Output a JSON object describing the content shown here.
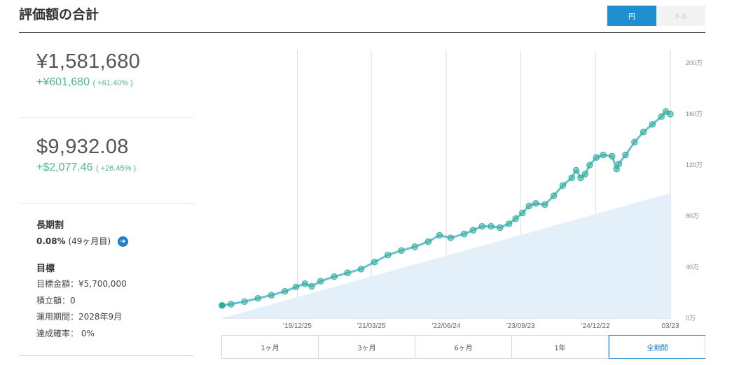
{
  "page": {
    "title": "評価額の合計"
  },
  "currency_toggle": {
    "yen": "円",
    "dollar": "ドル",
    "selected": "円"
  },
  "yen_total": {
    "value": "¥1,581,680",
    "gain": "+¥601,680",
    "pct": "( +61.40% )"
  },
  "usd_total": {
    "value": "$9,932.08",
    "gain": "+$2,077.46",
    "pct": "( +26.45% )"
  },
  "long_term": {
    "label": "長期割",
    "rate": "0.08%",
    "months": "(49ヶ月目)"
  },
  "goal": {
    "label": "目標",
    "rows": [
      "目標金額：¥5,700,000",
      "積立額：0",
      "運用期間：2028年9月",
      "達成確率： 0%"
    ]
  },
  "range_tabs": {
    "items": [
      "1ヶ月",
      "3ヶ月",
      "6ヶ月",
      "1年",
      "全期間"
    ],
    "selected": "全期間"
  },
  "colors": {
    "accent": "#1f8fd0",
    "line": "#2eae96",
    "gain": "#4fb88f",
    "area": "#e3eff9"
  },
  "chart_data": {
    "type": "line",
    "x_ticks": [
      "'19/12/25",
      "'21/03/25",
      "'22/06/24",
      "'23/09/23",
      "'24/12/22",
      "03/23"
    ],
    "y_ticks": [
      "0万",
      "40万",
      "80万",
      "120万",
      "160万",
      "200万"
    ],
    "ylim": [
      0,
      210
    ],
    "y_unit": "万",
    "series": [
      {
        "kind": "valuation",
        "x": [
          0,
          0.02,
          0.05,
          0.08,
          0.11,
          0.14,
          0.165,
          0.185,
          0.2,
          0.22,
          0.25,
          0.28,
          0.31,
          0.34,
          0.37,
          0.4,
          0.43,
          0.46,
          0.485,
          0.51,
          0.54,
          0.56,
          0.58,
          0.6,
          0.62,
          0.64,
          0.655,
          0.67,
          0.685,
          0.7,
          0.72,
          0.74,
          0.76,
          0.78,
          0.79,
          0.8,
          0.81,
          0.82,
          0.835,
          0.85,
          0.87,
          0.88,
          0.885,
          0.9,
          0.92,
          0.94,
          0.96,
          0.98,
          0.99,
          1.0
        ],
        "y": [
          10,
          11,
          13,
          15.5,
          18,
          21,
          24.5,
          27,
          25,
          29,
          32.5,
          35.5,
          38.5,
          44,
          49.5,
          53,
          56,
          60,
          65,
          63,
          66,
          69,
          72,
          72,
          71,
          74,
          78,
          82.5,
          88,
          90,
          89,
          96,
          104,
          110,
          116,
          110,
          113,
          120,
          126,
          128,
          127,
          117,
          121,
          128,
          138,
          146,
          152,
          158,
          162,
          160
        ]
      },
      {
        "kind": "principal",
        "x": [
          0,
          1
        ],
        "y": [
          0,
          98
        ]
      }
    ]
  }
}
